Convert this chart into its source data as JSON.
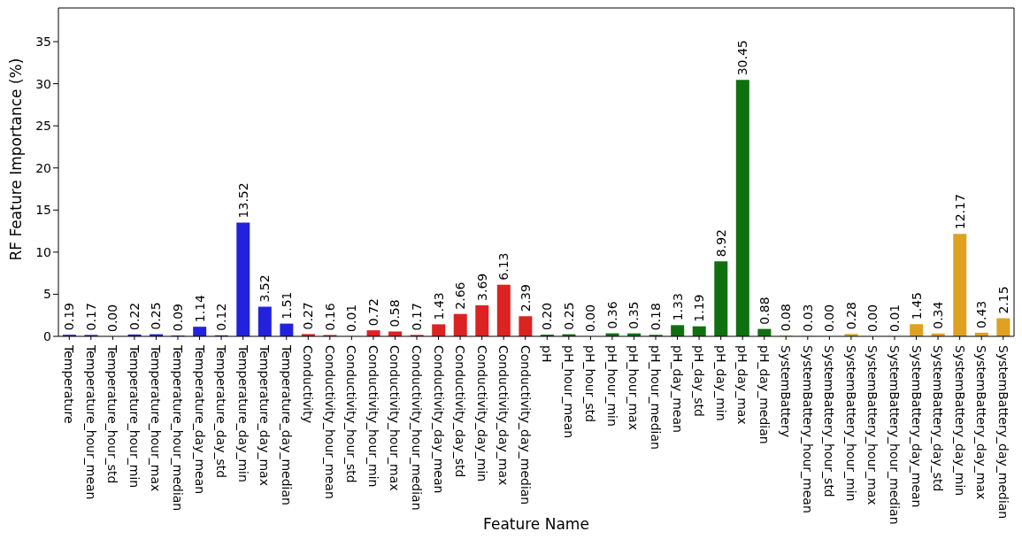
{
  "chart_data": {
    "type": "bar",
    "xlabel": "Feature Name",
    "ylabel": "RF Feature Importance (%)",
    "categories": [
      "Temperature",
      "Temperature_hour_mean",
      "Temperature_hour_std",
      "Temperature_hour_min",
      "Temperature_hour_max",
      "Temperature_hour_median",
      "Temperature_day_mean",
      "Temperature_day_std",
      "Temperature_day_min",
      "Temperature_day_max",
      "Temperature_day_median",
      "Conductivity",
      "Conductivity_hour_mean",
      "Conductivity_hour_std",
      "Conductivity_hour_min",
      "Conductivity_hour_max",
      "Conductivity_hour_median",
      "Conductivity_day_mean",
      "Conductivity_day_std",
      "Conductivity_day_min",
      "Conductivity_day_max",
      "Conductivity_day_median",
      "pH",
      "pH_hour_mean",
      "pH_hour_std",
      "pH_hour_min",
      "pH_hour_max",
      "pH_hour_median",
      "pH_day_mean",
      "pH_day_std",
      "pH_day_min",
      "pH_day_max",
      "pH_day_median",
      "SystemBattery",
      "SystemBattery_hour_mean",
      "SystemBattery_hour_std",
      "SystemBattery_hour_min",
      "SystemBattery_hour_max",
      "SystemBattery_hour_median",
      "SystemBattery_day_mean",
      "SystemBattery_day_std",
      "SystemBattery_day_min",
      "SystemBattery_day_max",
      "SystemBattery_day_median"
    ],
    "values": [
      0.19,
      0.17,
      0,
      0.22,
      0.25,
      0.09,
      1.14,
      0.12,
      13.52,
      3.52,
      1.51,
      0.27,
      0.16,
      0.01,
      0.72,
      0.58,
      0.17,
      1.43,
      2.66,
      3.69,
      6.13,
      2.39,
      0.2,
      0.25,
      0,
      0.36,
      0.35,
      0.18,
      1.33,
      1.19,
      8.92,
      30.45,
      0.88,
      0.08,
      0.03,
      0,
      0.28,
      0,
      0.01,
      1.45,
      0.34,
      12.17,
      0.43,
      2.15
    ],
    "value_labels": [
      "0.19",
      "0.17",
      "0.00",
      "0.22",
      "0.25",
      "0.09",
      "1.14",
      "0.12",
      "13.52",
      "3.52",
      "1.51",
      "0.27",
      "0.16",
      "0.01",
      "0.72",
      "0.58",
      "0.17",
      "1.43",
      "2.66",
      "3.69",
      "6.13",
      "2.39",
      "0.20",
      "0.25",
      "0.00",
      "0.36",
      "0.35",
      "0.18",
      "1.33",
      "1.19",
      "8.92",
      "30.45",
      "0.88",
      "0.08",
      "0.03",
      "0.00",
      "0.28",
      "0.00",
      "0.01",
      "1.45",
      "0.34",
      "12.17",
      "0.43",
      "2.15"
    ],
    "colors": [
      "#2222dd",
      "#2222dd",
      "#2222dd",
      "#2222dd",
      "#2222dd",
      "#2222dd",
      "#2222dd",
      "#2222dd",
      "#2222dd",
      "#2222dd",
      "#2222dd",
      "#dd2222",
      "#dd2222",
      "#dd2222",
      "#dd2222",
      "#dd2222",
      "#dd2222",
      "#dd2222",
      "#dd2222",
      "#dd2222",
      "#dd2222",
      "#dd2222",
      "#107010",
      "#107010",
      "#107010",
      "#107010",
      "#107010",
      "#107010",
      "#107010",
      "#107010",
      "#107010",
      "#107010",
      "#107010",
      "#e0a020",
      "#e0a020",
      "#e0a020",
      "#e0a020",
      "#e0a020",
      "#e0a020",
      "#e0a020",
      "#e0a020",
      "#e0a020",
      "#e0a020",
      "#e0a020"
    ],
    "ylim": [
      0,
      39
    ],
    "yticks": [
      0,
      5,
      10,
      15,
      20,
      25,
      30,
      35
    ],
    "grid": false,
    "legend": false
  }
}
